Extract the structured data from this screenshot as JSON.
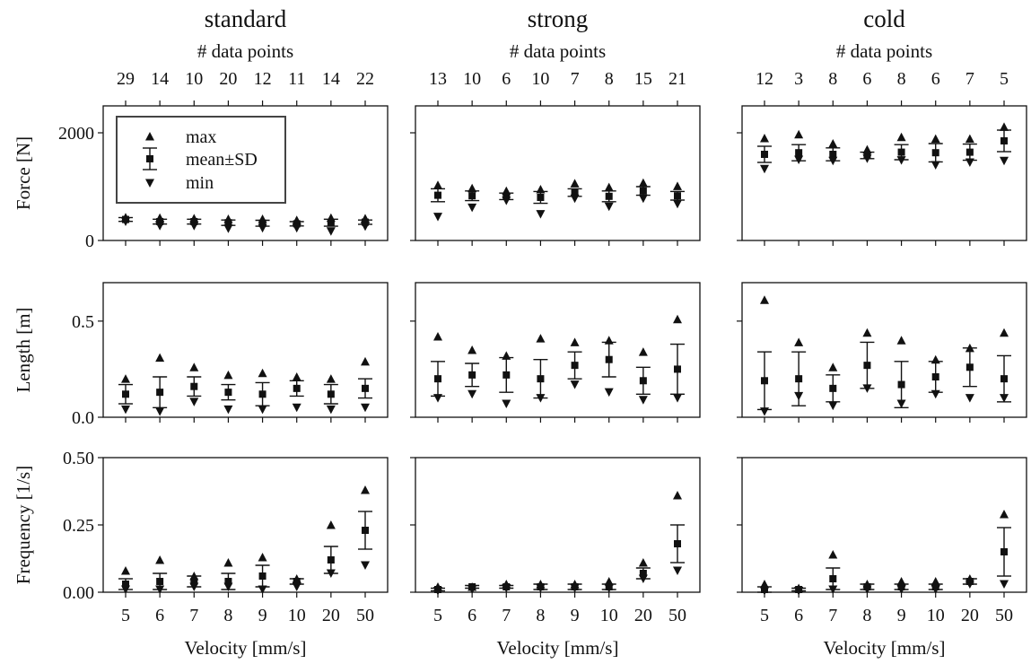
{
  "figure": {
    "columns": [
      "standard",
      "strong",
      "cold"
    ],
    "secondary_axis_label": "# data points",
    "x_axis_label": "Velocity [mm/s]",
    "x_categories": [
      "5",
      "6",
      "7",
      "8",
      "9",
      "10",
      "20",
      "50"
    ]
  },
  "legend": {
    "max_label": "max",
    "mean_label": "mean±SD",
    "min_label": "min"
  },
  "colors": {
    "marker": "#111111",
    "axes": "#111111",
    "background": "#ffffff"
  },
  "chart_data": [
    {
      "type": "scatter",
      "column": "standard",
      "row": "Force",
      "title": "standard",
      "secondary_xlabel": "# data points",
      "data_point_counts": [
        29,
        14,
        10,
        20,
        12,
        11,
        14,
        22
      ],
      "xlabel": "",
      "ylabel": "Force [N]",
      "ylim": [
        0,
        2500
      ],
      "yticks": [
        0,
        2000
      ],
      "categories": [
        "5",
        "6",
        "7",
        "8",
        "9",
        "10",
        "20",
        "50"
      ],
      "max": [
        430,
        420,
        410,
        400,
        400,
        380,
        420,
        410
      ],
      "mean": [
        390,
        350,
        350,
        330,
        320,
        310,
        330,
        340
      ],
      "sd": [
        35,
        45,
        45,
        50,
        55,
        40,
        65,
        40
      ],
      "min": [
        350,
        270,
        270,
        220,
        230,
        230,
        170,
        260
      ],
      "legend": "top-left"
    },
    {
      "type": "scatter",
      "column": "strong",
      "row": "Force",
      "title": "strong",
      "secondary_xlabel": "# data points",
      "data_point_counts": [
        13,
        10,
        6,
        10,
        7,
        8,
        15,
        21
      ],
      "xlabel": "",
      "ylabel": "",
      "ylim": [
        0,
        2500
      ],
      "yticks": [
        0,
        2000
      ],
      "categories": [
        "5",
        "6",
        "7",
        "8",
        "9",
        "10",
        "20",
        "50"
      ],
      "max": [
        1030,
        970,
        920,
        950,
        1060,
        990,
        1070,
        1010
      ],
      "mean": [
        840,
        830,
        820,
        800,
        890,
        820,
        920,
        830
      ],
      "sd": [
        120,
        90,
        60,
        110,
        70,
        100,
        80,
        80
      ],
      "min": [
        440,
        610,
        740,
        490,
        780,
        630,
        780,
        680
      ]
    },
    {
      "type": "scatter",
      "column": "cold",
      "row": "Force",
      "title": "cold",
      "secondary_xlabel": "# data points",
      "data_point_counts": [
        12,
        3,
        8,
        6,
        8,
        6,
        7,
        5
      ],
      "xlabel": "",
      "ylabel": "",
      "ylim": [
        0,
        2500
      ],
      "yticks": [
        0,
        2000
      ],
      "categories": [
        "5",
        "6",
        "7",
        "8",
        "9",
        "10",
        "20",
        "50"
      ],
      "max": [
        1900,
        1970,
        1800,
        1690,
        1920,
        1890,
        1890,
        2110
      ],
      "mean": [
        1600,
        1630,
        1600,
        1580,
        1640,
        1630,
        1640,
        1850
      ],
      "sd": [
        150,
        150,
        120,
        60,
        140,
        170,
        150,
        200
      ],
      "min": [
        1330,
        1500,
        1480,
        1520,
        1490,
        1400,
        1450,
        1480
      ]
    },
    {
      "type": "scatter",
      "column": "standard",
      "row": "Length",
      "xlabel": "",
      "ylabel": "Length [m]",
      "ylim": [
        0,
        0.7
      ],
      "yticks": [
        0.0,
        0.5
      ],
      "categories": [
        "5",
        "6",
        "7",
        "8",
        "9",
        "10",
        "20",
        "50"
      ],
      "max": [
        0.2,
        0.31,
        0.26,
        0.22,
        0.23,
        0.21,
        0.2,
        0.29
      ],
      "mean": [
        0.12,
        0.13,
        0.16,
        0.13,
        0.12,
        0.15,
        0.12,
        0.15
      ],
      "sd": [
        0.05,
        0.08,
        0.05,
        0.04,
        0.06,
        0.04,
        0.05,
        0.05
      ],
      "min": [
        0.04,
        0.03,
        0.08,
        0.04,
        0.04,
        0.05,
        0.04,
        0.05
      ]
    },
    {
      "type": "scatter",
      "column": "strong",
      "row": "Length",
      "xlabel": "",
      "ylabel": "",
      "ylim": [
        0,
        0.7
      ],
      "yticks": [
        0.0,
        0.5
      ],
      "categories": [
        "5",
        "6",
        "7",
        "8",
        "9",
        "10",
        "20",
        "50"
      ],
      "max": [
        0.42,
        0.35,
        0.32,
        0.41,
        0.39,
        0.4,
        0.34,
        0.51
      ],
      "mean": [
        0.2,
        0.22,
        0.22,
        0.2,
        0.27,
        0.3,
        0.19,
        0.25
      ],
      "sd": [
        0.09,
        0.06,
        0.09,
        0.1,
        0.07,
        0.09,
        0.07,
        0.13
      ],
      "min": [
        0.1,
        0.12,
        0.07,
        0.1,
        0.17,
        0.13,
        0.09,
        0.1
      ]
    },
    {
      "type": "scatter",
      "column": "cold",
      "row": "Length",
      "xlabel": "",
      "ylabel": "",
      "ylim": [
        0,
        0.7
      ],
      "yticks": [
        0.0,
        0.5
      ],
      "categories": [
        "5",
        "6",
        "7",
        "8",
        "9",
        "10",
        "20",
        "50"
      ],
      "max": [
        0.61,
        0.39,
        0.26,
        0.44,
        0.4,
        0.3,
        0.36,
        0.44
      ],
      "mean": [
        0.19,
        0.2,
        0.15,
        0.27,
        0.17,
        0.21,
        0.26,
        0.2
      ],
      "sd": [
        0.15,
        0.14,
        0.07,
        0.12,
        0.12,
        0.08,
        0.1,
        0.12
      ],
      "min": [
        0.03,
        0.11,
        0.06,
        0.15,
        0.07,
        0.12,
        0.1,
        0.1
      ]
    },
    {
      "type": "scatter",
      "column": "standard",
      "row": "Frequency",
      "xlabel": "Velocity [mm/s]",
      "ylabel": "Frequency [1/s]",
      "ylim": [
        0,
        0.5
      ],
      "yticks": [
        0.0,
        0.25,
        0.5
      ],
      "categories": [
        "5",
        "6",
        "7",
        "8",
        "9",
        "10",
        "20",
        "50"
      ],
      "max": [
        0.08,
        0.12,
        0.06,
        0.11,
        0.13,
        0.05,
        0.25,
        0.38
      ],
      "mean": [
        0.03,
        0.04,
        0.04,
        0.04,
        0.06,
        0.04,
        0.12,
        0.23
      ],
      "sd": [
        0.02,
        0.03,
        0.02,
        0.03,
        0.04,
        0.01,
        0.05,
        0.07
      ],
      "min": [
        0.01,
        0.01,
        0.02,
        0.02,
        0.01,
        0.02,
        0.07,
        0.1
      ]
    },
    {
      "type": "scatter",
      "column": "strong",
      "row": "Frequency",
      "xlabel": "Velocity [mm/s]",
      "ylabel": "",
      "ylim": [
        0,
        0.5
      ],
      "yticks": [
        0.0,
        0.25,
        0.5
      ],
      "categories": [
        "5",
        "6",
        "7",
        "8",
        "9",
        "10",
        "20",
        "50"
      ],
      "max": [
        0.02,
        0.02,
        0.03,
        0.03,
        0.03,
        0.04,
        0.11,
        0.36
      ],
      "mean": [
        0.01,
        0.02,
        0.02,
        0.02,
        0.02,
        0.02,
        0.07,
        0.18
      ],
      "sd": [
        0.005,
        0.005,
        0.005,
        0.01,
        0.01,
        0.01,
        0.02,
        0.07
      ],
      "min": [
        0.005,
        0.01,
        0.015,
        0.015,
        0.015,
        0.015,
        0.05,
        0.08
      ]
    },
    {
      "type": "scatter",
      "column": "cold",
      "row": "Frequency",
      "xlabel": "Velocity [mm/s]",
      "ylabel": "",
      "ylim": [
        0,
        0.5
      ],
      "yticks": [
        0.0,
        0.25,
        0.5
      ],
      "categories": [
        "5",
        "6",
        "7",
        "8",
        "9",
        "10",
        "20",
        "50"
      ],
      "max": [
        0.03,
        0.015,
        0.14,
        0.03,
        0.04,
        0.04,
        0.05,
        0.29
      ],
      "mean": [
        0.01,
        0.01,
        0.05,
        0.02,
        0.02,
        0.02,
        0.04,
        0.15
      ],
      "sd": [
        0.01,
        0.005,
        0.04,
        0.01,
        0.01,
        0.01,
        0.01,
        0.09
      ],
      "min": [
        0.005,
        0.005,
        0.01,
        0.01,
        0.01,
        0.01,
        0.03,
        0.03
      ]
    }
  ]
}
